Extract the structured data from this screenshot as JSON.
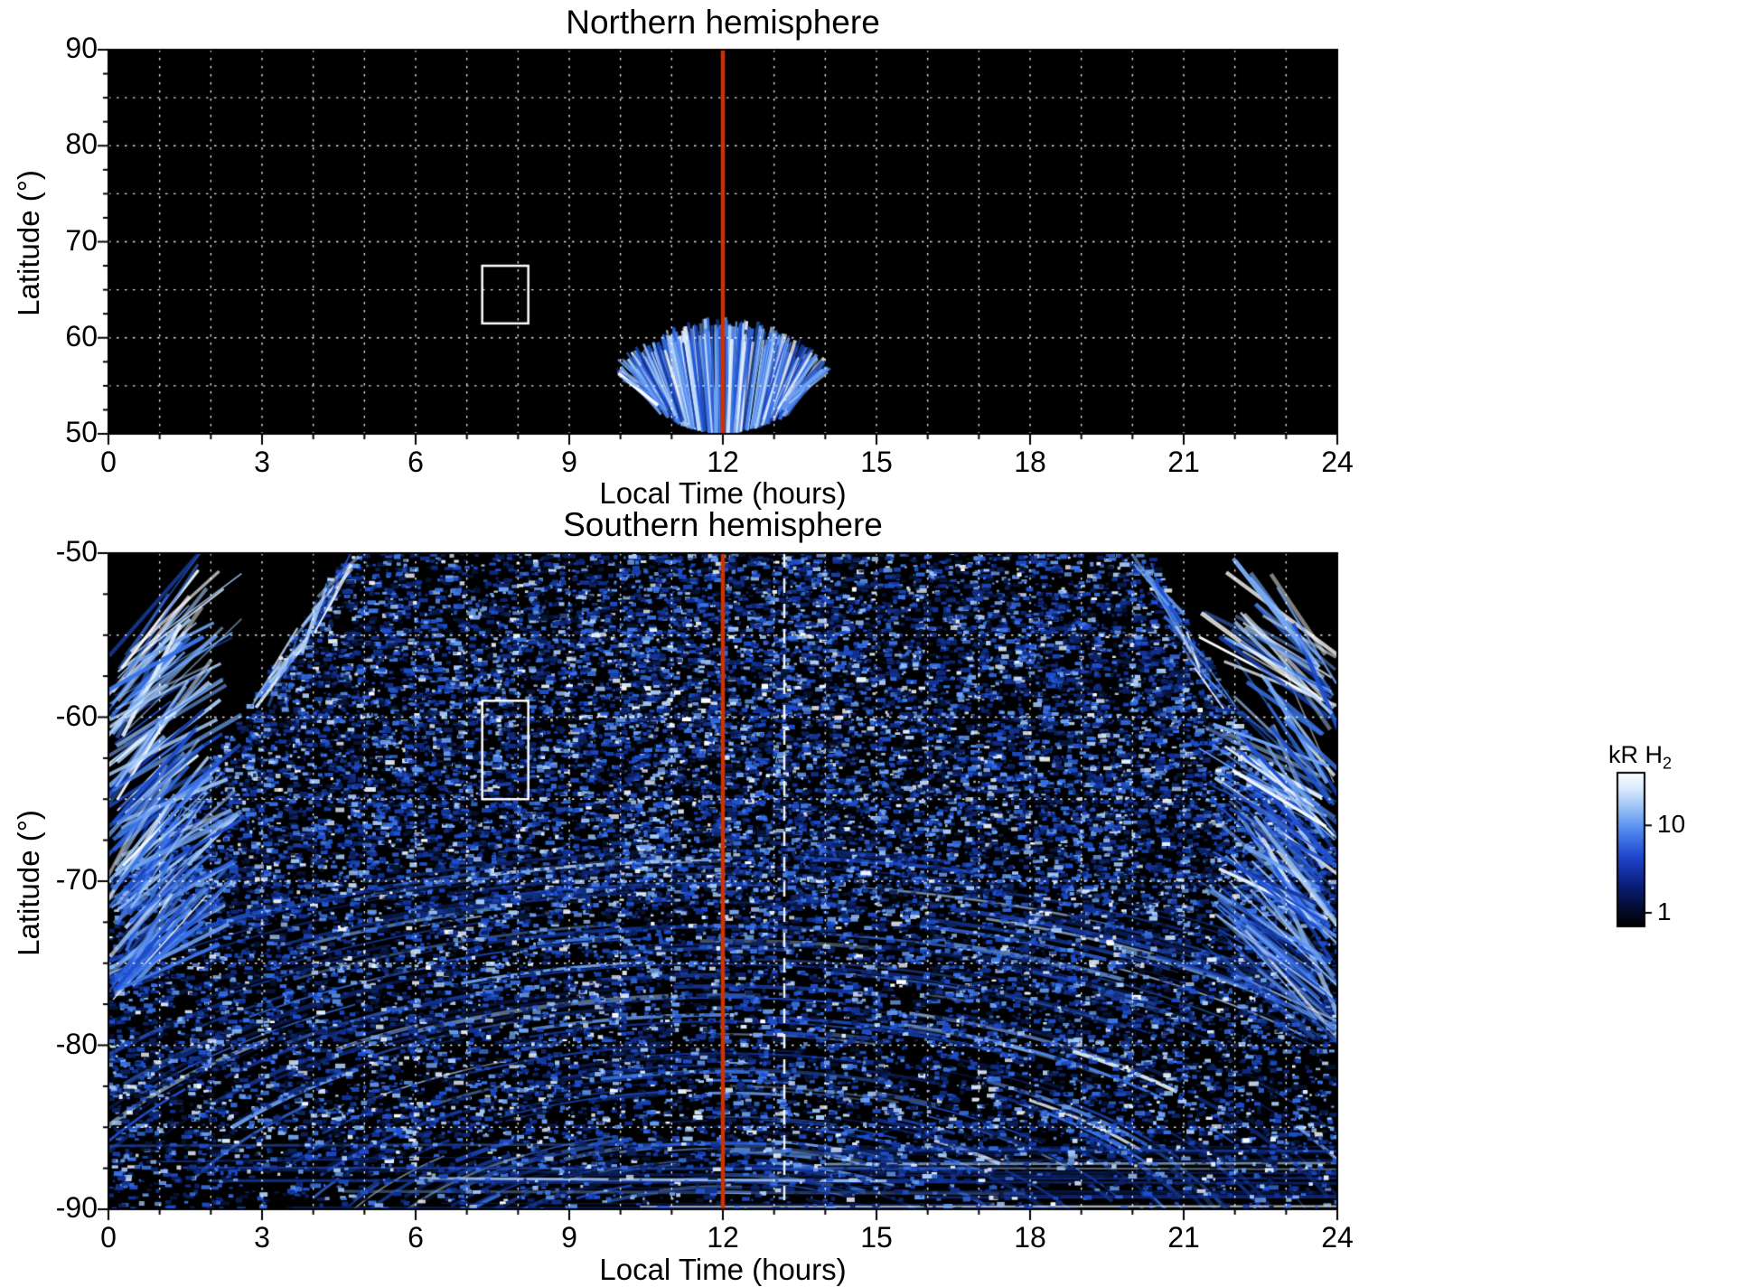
{
  "colors": {
    "background": "#ffffff",
    "plot_background": "#000000",
    "grid": "#ffffff",
    "text": "#000000",
    "noon_line": "#cc3300",
    "selection_box": "#ffffff",
    "dashed_line": "#ffffff",
    "palette": [
      "#081433",
      "#0d2366",
      "#123399",
      "#1e4fd0",
      "#3a74e8",
      "#6fa3f2",
      "#a8ccf8",
      "#e2f0fe",
      "#ffffff"
    ]
  },
  "chart_data": [
    {
      "type": "heatmap",
      "title": "Northern hemisphere",
      "xlabel": "Local Time (hours)",
      "ylabel": "Latitude (°)",
      "xlim": [
        0,
        24
      ],
      "ylim": [
        50,
        90
      ],
      "xticks": [
        0,
        3,
        6,
        9,
        12,
        15,
        18,
        21,
        24
      ],
      "yticks": [
        90,
        80,
        70,
        60,
        50
      ],
      "x_grid_step_hours": 1,
      "y_grid_step_deg": 5,
      "grid": "white dotted on black background",
      "noon_line_hour": 12,
      "selection_box": {
        "x0_hour": 7.3,
        "x1_hour": 8.2,
        "lat0": 61.5,
        "lat1": 67.5
      },
      "emission": {
        "kind": "fan",
        "description": "Fan of blue H2 auroral emission streaks around local noon, latitudes 50-61",
        "center_hour": 12,
        "hour_min": 9.9,
        "hour_max": 14.1,
        "lat_min": 50,
        "lat_max": 61,
        "streaks": 300,
        "seed": 7
      }
    },
    {
      "type": "heatmap",
      "title": "Southern hemisphere",
      "xlabel": "Local Time (hours)",
      "ylabel": "Latitude (°)",
      "xlim": [
        0,
        24
      ],
      "ylim": [
        -90,
        -50
      ],
      "xticks": [
        0,
        3,
        6,
        9,
        12,
        15,
        18,
        21,
        24
      ],
      "yticks": [
        -50,
        -60,
        -70,
        -80,
        -90
      ],
      "x_grid_step_hours": 1,
      "y_grid_step_deg": 5,
      "grid": "white dotted on black background",
      "noon_line_hour": 12,
      "dashed_line_hour": 13.2,
      "selection_box": {
        "x0_hour": 7.3,
        "x1_hour": 8.2,
        "lat0": -65,
        "lat1": -59
      },
      "emission": {
        "kind": "speckle",
        "description": "Dense speckled blue/white H2 auroral emission covering most local times, dark wedges at top corners, bright dawn (0-2.5h) and dusk (21.3-24h) edge fans between -55 and -80, concentric arc bands poleward of -70",
        "speckles": 60000,
        "arc_bands": 380,
        "edge_fan_streaks": 150,
        "seed": 11
      }
    }
  ],
  "colorbar": {
    "label": "kR H",
    "label_sub": "2",
    "scale": "log",
    "value_min": 0.7,
    "value_max": 40,
    "ticks": [
      {
        "value": 10,
        "label": "10"
      },
      {
        "value": 1,
        "label": "1"
      }
    ],
    "gradient": [
      {
        "at": 0.0,
        "color": "#ffffff"
      },
      {
        "at": 0.1,
        "color": "#dcebfd"
      },
      {
        "at": 0.22,
        "color": "#9ec6f7"
      },
      {
        "at": 0.38,
        "color": "#4f86ee"
      },
      {
        "at": 0.55,
        "color": "#1f45cc"
      },
      {
        "at": 0.72,
        "color": "#0c2080"
      },
      {
        "at": 0.88,
        "color": "#040d33"
      },
      {
        "at": 1.0,
        "color": "#000000"
      }
    ]
  }
}
